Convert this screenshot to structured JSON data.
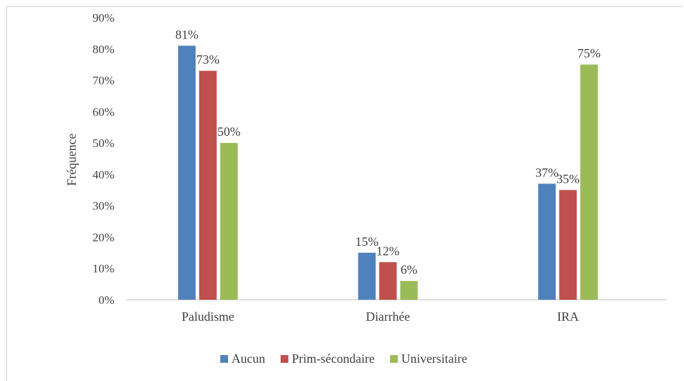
{
  "chart_data": {
    "type": "bar",
    "title": "",
    "xlabel": "",
    "ylabel": "Fréquence",
    "ylim": [
      0,
      90
    ],
    "yticks": [
      "0%",
      "10%",
      "20%",
      "30%",
      "40%",
      "50%",
      "60%",
      "70%",
      "80%",
      "90%"
    ],
    "categories": [
      "Paludisme",
      "Diarrhée",
      "IRA"
    ],
    "series": [
      {
        "name": "Aucun",
        "color": "#4f81bd",
        "values": [
          81,
          15,
          37
        ],
        "labels": [
          "81%",
          "15%",
          "37%"
        ]
      },
      {
        "name": "Prim-sécondaire",
        "color": "#c0504d",
        "values": [
          73,
          12,
          35
        ],
        "labels": [
          "73%",
          "12%",
          "35%"
        ]
      },
      {
        "name": "Universitaire",
        "color": "#9bbb59",
        "values": [
          50,
          6,
          75
        ],
        "labels": [
          "50%",
          "6%",
          "75%"
        ]
      }
    ],
    "grid": false,
    "legend": "bottom"
  }
}
